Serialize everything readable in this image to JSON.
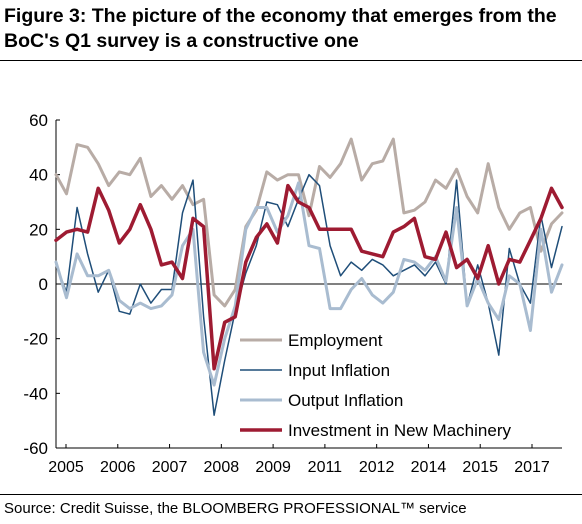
{
  "figure": {
    "title": "Figure 3: The picture of the economy that emerges from the BoC's Q1 survey is a constructive one",
    "source": "Source: Credit Suisse, the BLOOMBERG PROFESSIONAL™ service"
  },
  "chart_data": {
    "type": "line",
    "title": "",
    "xlabel": "",
    "ylabel": "",
    "ylim": [
      -60,
      60
    ],
    "yticks": [
      -60,
      -40,
      -20,
      0,
      20,
      40,
      60
    ],
    "xtick_labels": [
      "2005",
      "2006",
      "2007",
      "2008",
      "2009",
      "2011",
      "2012",
      "2014",
      "2015",
      "2017"
    ],
    "grid": false,
    "legend_position": "bottom-center",
    "x_note": "quarterly survey observations, 2005 Q1 to 2017 Q1 (49 points)",
    "series": [
      {
        "name": "Employment",
        "color": "#b8aca6",
        "width": 3,
        "values": [
          40,
          33,
          51,
          50,
          44,
          36,
          41,
          40,
          46,
          32,
          36,
          31,
          36,
          29,
          31,
          -4,
          -8,
          -2,
          21,
          27,
          41,
          38,
          40,
          40,
          25,
          43,
          39,
          44,
          53,
          38,
          44,
          45,
          53,
          26,
          27,
          30,
          38,
          35,
          42,
          32,
          26,
          44,
          28,
          20,
          26,
          28,
          12,
          22,
          26
        ]
      },
      {
        "name": "Input Inflation",
        "color": "#1f4e79",
        "width": 1.5,
        "values": [
          7,
          -3,
          28,
          11,
          -3,
          5,
          -10,
          -11,
          0,
          -7,
          -2,
          -2,
          26,
          38,
          -12,
          -48,
          -28,
          -10,
          4,
          14,
          30,
          29,
          21,
          31,
          40,
          36,
          14,
          3,
          8,
          5,
          9,
          7,
          3,
          5,
          7,
          3,
          8,
          0,
          38,
          -8,
          7,
          -7,
          -26,
          13,
          0,
          -7,
          25,
          6,
          21
        ]
      },
      {
        "name": "Output Inflation",
        "color": "#a9bcd0",
        "width": 3,
        "values": [
          8,
          -5,
          11,
          3,
          3,
          5,
          -6,
          -9,
          -7,
          -9,
          -8,
          -4,
          14,
          20,
          -25,
          -37,
          -20,
          -8,
          20,
          28,
          28,
          19,
          25,
          37,
          14,
          13,
          -9,
          -9,
          -2,
          2,
          -4,
          -7,
          -3,
          9,
          8,
          5,
          10,
          1,
          28,
          -8,
          2,
          -7,
          -13,
          3,
          0,
          -17,
          20,
          -3,
          7
        ]
      },
      {
        "name": "Investment in New Machinery",
        "color": "#9e1b32",
        "width": 3.5,
        "values": [
          16,
          19,
          20,
          19,
          35,
          27,
          15,
          20,
          29,
          20,
          7,
          8,
          2,
          24,
          21,
          -31,
          -14,
          -12,
          8,
          17,
          22,
          15,
          36,
          30,
          28,
          20,
          20,
          20,
          20,
          12,
          11,
          10,
          19,
          21,
          24,
          10,
          9,
          19,
          6,
          9,
          2,
          14,
          0,
          9,
          8,
          16,
          24,
          35,
          28
        ]
      }
    ]
  }
}
